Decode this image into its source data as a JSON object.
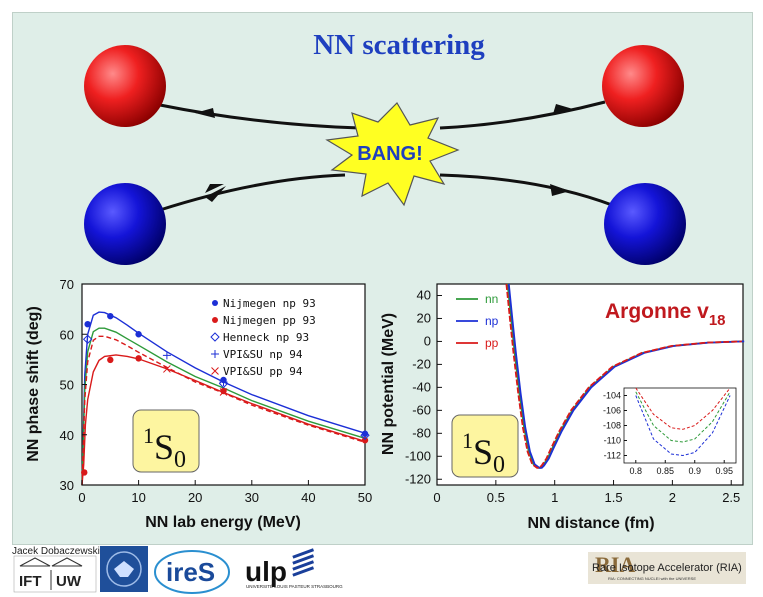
{
  "title": "NN scattering",
  "bang_label": "BANG!",
  "state_label_main": "1",
  "state_label_letter": "S",
  "state_label_sub": "0",
  "chart_data": [
    {
      "type": "scatter",
      "xlabel": "NN lab energy (MeV)",
      "ylabel": "NN phase shift (deg)",
      "xlim": [
        0,
        50
      ],
      "ylim": [
        30,
        70
      ],
      "xticks": [
        "0",
        "10",
        "20",
        "30",
        "40",
        "50"
      ],
      "yticks": [
        "30",
        "40",
        "50",
        "60",
        "70"
      ],
      "legend_position": "top-right",
      "series": [
        {
          "name": "Nijmegen np 93",
          "marker": "filled-circle",
          "color": "#1c2fd6",
          "points": [
            [
              1,
              62
            ],
            [
              5,
              63.6
            ],
            [
              10,
              60
            ],
            [
              25,
              50.9
            ],
            [
              50,
              40.2
            ]
          ]
        },
        {
          "name": "Nijmegen pp 93",
          "marker": "filled-circle",
          "color": "#d91a1a",
          "points": [
            [
              0.4,
              32.5
            ],
            [
              5,
              54.9
            ],
            [
              10,
              55.2
            ],
            [
              25,
              48.7
            ],
            [
              50,
              38.9
            ]
          ]
        },
        {
          "name": "Henneck np 93",
          "marker": "open-diamond",
          "color": "#1c2fd6",
          "points": [
            [
              1,
              59
            ],
            [
              25,
              50.2
            ],
            [
              50,
              39.9
            ]
          ]
        },
        {
          "name": "VPI&SU np 94",
          "marker": "plus",
          "color": "#1c2fd6",
          "points": [
            [
              15,
              55.8
            ],
            [
              25,
              50.5
            ]
          ]
        },
        {
          "name": "VPI&SU pp 94",
          "marker": "cross",
          "color": "#d91a1a",
          "points": [
            [
              15,
              53.1
            ],
            [
              25,
              48.5
            ]
          ]
        }
      ],
      "curves": [
        {
          "name": "np",
          "color": "#1c2fd6",
          "x": [
            0,
            0.5,
            1,
            2,
            3,
            4,
            6,
            8,
            10,
            15,
            20,
            25,
            30,
            40,
            50
          ],
          "y": [
            30,
            52,
            60,
            63.8,
            64.4,
            64.3,
            63.3,
            61.8,
            60.2,
            56.5,
            53.3,
            50.5,
            48,
            43.8,
            40.3
          ]
        },
        {
          "name": "nn",
          "color": "#2e9a3a",
          "x": [
            0,
            0.5,
            1,
            2,
            3,
            4,
            6,
            8,
            10,
            15,
            20,
            25,
            30,
            40,
            50
          ],
          "y": [
            30,
            49,
            56.5,
            60.5,
            61.2,
            61.2,
            60.4,
            59.1,
            57.8,
            54.5,
            51.6,
            49.3,
            46.8,
            42.7,
            39.3
          ]
        },
        {
          "name": "pp",
          "color": "#d91a1a",
          "x": [
            0,
            0.3,
            0.6,
            1,
            2,
            3,
            4,
            6,
            8,
            10,
            15,
            20,
            25,
            30,
            40,
            50
          ],
          "y": [
            30,
            34,
            42,
            47,
            52.5,
            54.8,
            55.6,
            55.9,
            55.6,
            55.1,
            53.1,
            50.8,
            48.4,
            46.2,
            42.1,
            38.7
          ]
        },
        {
          "name": "pp-dashed",
          "color": "#d91a1a",
          "dashed": true,
          "x": [
            0,
            0.5,
            1,
            2,
            3,
            4,
            6,
            8,
            10,
            15,
            20,
            25,
            30,
            40,
            50
          ],
          "y": [
            30,
            47,
            54.5,
            58.8,
            59.6,
            59.6,
            58.9,
            57.7,
            56.4,
            53.4,
            50.5,
            48.3,
            45.9,
            41.9,
            38.5
          ]
        }
      ]
    },
    {
      "type": "line",
      "xlabel": "NN distance (fm)",
      "ylabel": "NN potential (MeV)",
      "xlim": [
        0,
        2.6
      ],
      "ylim": [
        -125,
        50
      ],
      "xticks": [
        "0",
        "0.5",
        "1",
        "1.5",
        "2",
        "2.5"
      ],
      "yticks": [
        "40",
        "20",
        "0",
        "-20",
        "-40",
        "-60",
        "-80",
        "-100",
        "-120"
      ],
      "annotation": {
        "text": "Argonne v",
        "sub": "18"
      },
      "legend_position": "top-left",
      "series": [
        {
          "name": "nn",
          "color": "#2e9a3a"
        },
        {
          "name": "np",
          "color": "#1c2fd6"
        },
        {
          "name": "pp",
          "color": "#d91a1a"
        }
      ],
      "curve": {
        "x": [
          0.6,
          0.63,
          0.66,
          0.7,
          0.74,
          0.78,
          0.82,
          0.86,
          0.88,
          0.9,
          0.94,
          0.98,
          1.05,
          1.15,
          1.3,
          1.5,
          1.75,
          2.0,
          2.3,
          2.6
        ],
        "y": [
          50,
          20,
          -10,
          -45,
          -75,
          -96,
          -107,
          -110,
          -110,
          -108,
          -102,
          -93,
          -78,
          -60,
          -40,
          -22,
          -10,
          -4,
          -1,
          0
        ]
      },
      "inset": {
        "xlim": [
          0.78,
          0.97
        ],
        "ylim": [
          -113,
          -103
        ],
        "xticks": [
          "0.8",
          "0.85",
          "0.9",
          "0.95"
        ],
        "yticks": [
          "-104",
          "-106",
          "-108",
          "-110",
          "-112"
        ],
        "series": [
          {
            "name": "pp",
            "color": "#d91a1a",
            "x": [
              0.8,
              0.83,
              0.86,
              0.88,
              0.9,
              0.93,
              0.96
            ],
            "y": [
              -103,
              -106.5,
              -108.3,
              -108.5,
              -108,
              -106,
              -103
            ]
          },
          {
            "name": "nn",
            "color": "#2e9a3a",
            "x": [
              0.8,
              0.83,
              0.86,
              0.88,
              0.9,
              0.93,
              0.96
            ],
            "y": [
              -103.5,
              -108,
              -110,
              -110.2,
              -109.8,
              -107.5,
              -103.5
            ]
          },
          {
            "name": "np",
            "color": "#1c2fd6",
            "x": [
              0.8,
              0.83,
              0.86,
              0.88,
              0.9,
              0.93,
              0.96
            ],
            "y": [
              -104,
              -109.8,
              -111.8,
              -112,
              -111.6,
              -109,
              -104
            ]
          }
        ]
      }
    }
  ],
  "footer": {
    "author": "Jacek Dobaczewski",
    "logos": [
      "IFT UW",
      "Universitas Varsoviensis",
      "ireS",
      "ulp",
      "Rare Isotope Accelerator (RIA)"
    ],
    "ulp_caption": "UNIVERSITÉ LOUIS PASTEUR STRASBOURG",
    "ria_caption": "RIA: CONNECTING NUCLEI with the UNIVERSE",
    "ria_title": "Rare Isotope Accelerator (RIA)"
  }
}
